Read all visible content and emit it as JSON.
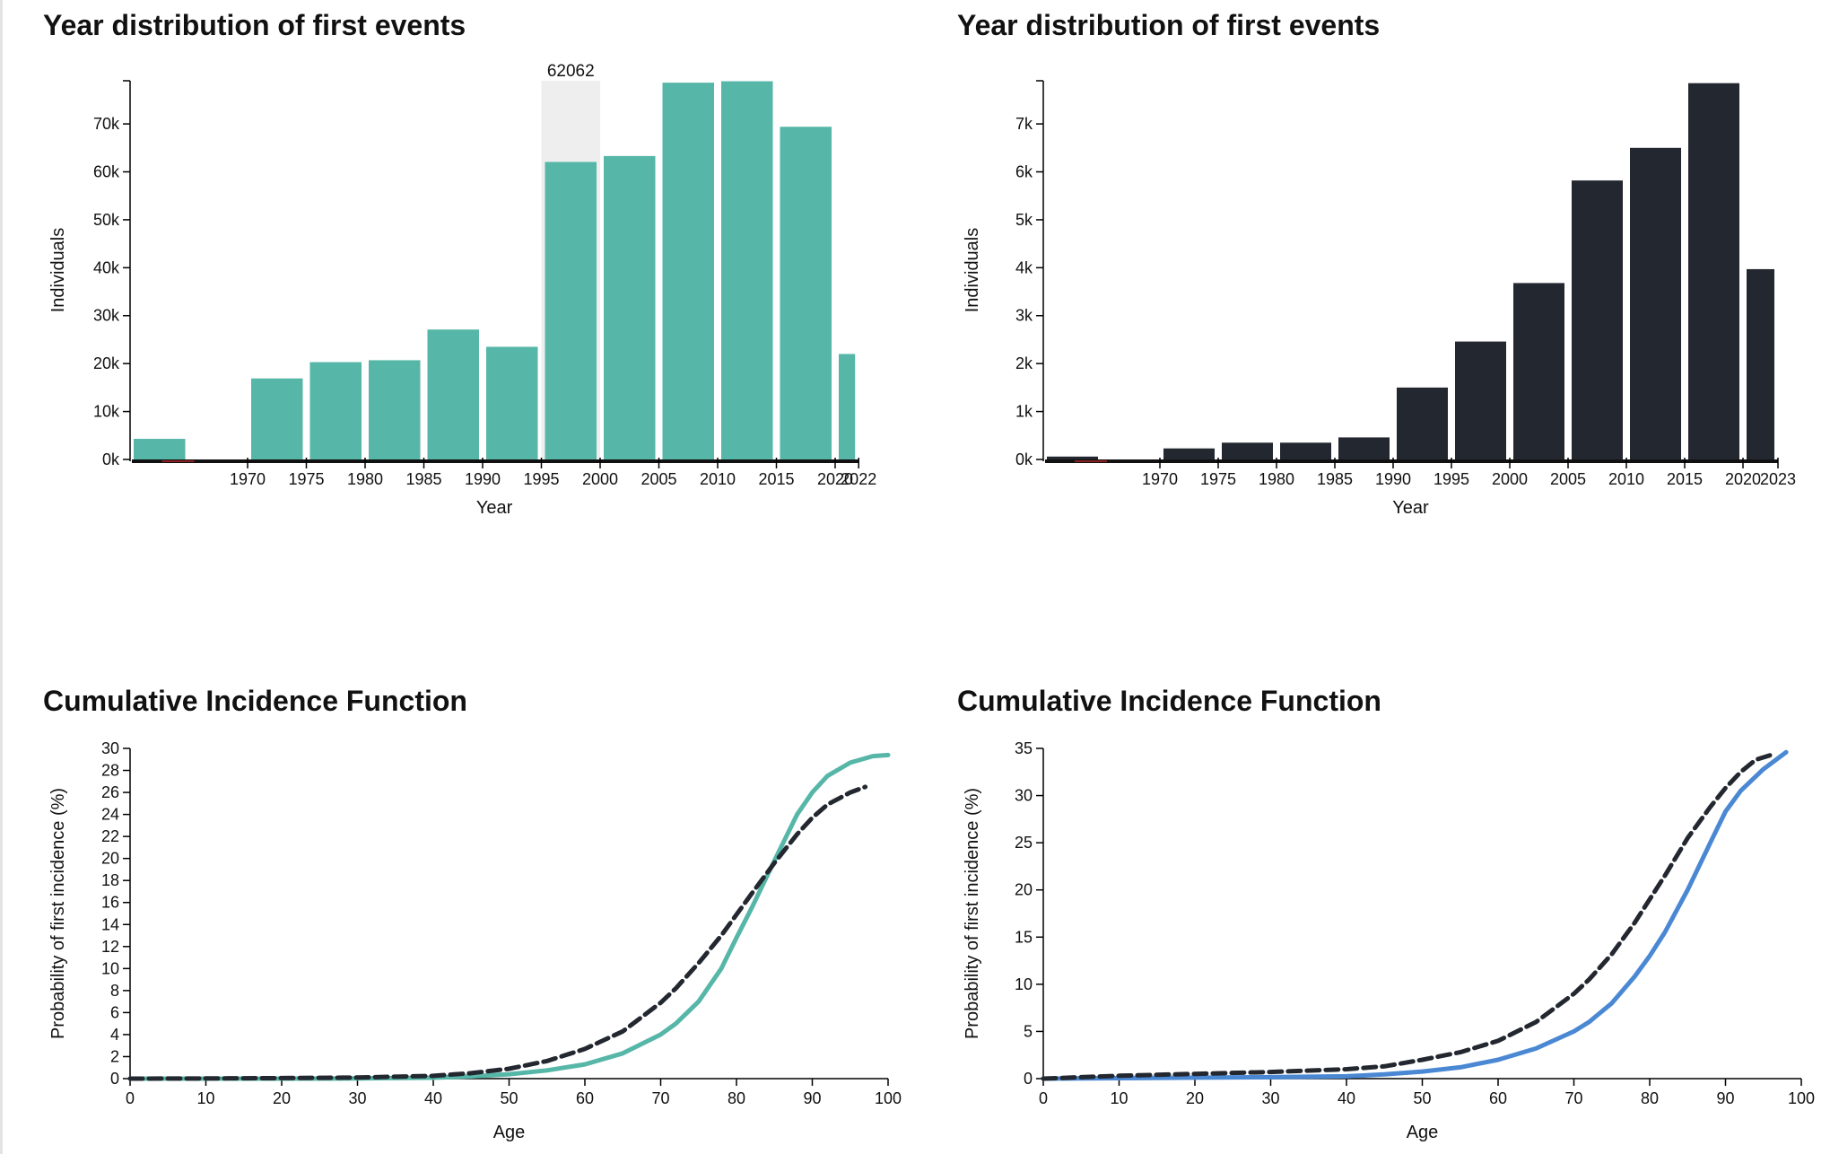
{
  "charts": [
    {
      "title": "Year distribution of first events",
      "chart_data": {
        "type": "bar",
        "title": "Year distribution of first events",
        "xlabel": "Year",
        "ylabel": "Individuals",
        "ylim": [
          0,
          79000
        ],
        "yticks": [
          "0k",
          "10k",
          "20k",
          "30k",
          "40k",
          "50k",
          "60k",
          "70k"
        ],
        "xticks": [
          "1970",
          "1975",
          "1980",
          "1985",
          "1990",
          "1995",
          "2000",
          "2005",
          "2010",
          "2015",
          "2020",
          "2022"
        ],
        "bins": [
          {
            "start": 1960,
            "end": 1965,
            "value": 4300
          },
          {
            "start": 1965,
            "end": 1970,
            "value": 0
          },
          {
            "start": 1970,
            "end": 1975,
            "value": 16900
          },
          {
            "start": 1975,
            "end": 1980,
            "value": 20300
          },
          {
            "start": 1980,
            "end": 1985,
            "value": 20700
          },
          {
            "start": 1985,
            "end": 1990,
            "value": 27100
          },
          {
            "start": 1990,
            "end": 1995,
            "value": 23500
          },
          {
            "start": 1995,
            "end": 2000,
            "value": 62062
          },
          {
            "start": 2000,
            "end": 2005,
            "value": 63300
          },
          {
            "start": 2005,
            "end": 2010,
            "value": 78600
          },
          {
            "start": 2010,
            "end": 2015,
            "value": 78900
          },
          {
            "start": 2015,
            "end": 2020,
            "value": 69400
          },
          {
            "start": 2020,
            "end": 2022,
            "value": 22000
          }
        ],
        "highlight": {
          "index": 7,
          "label": "62062"
        },
        "bar_color": "#56b6a7",
        "highlight_color": "#eeeeee"
      }
    },
    {
      "title": "Year distribution of first events",
      "chart_data": {
        "type": "bar",
        "title": "Year distribution of first events",
        "xlabel": "Year",
        "ylabel": "Individuals",
        "ylim": [
          0,
          7900
        ],
        "yticks": [
          "0k",
          "1k",
          "2k",
          "3k",
          "4k",
          "5k",
          "6k",
          "7k"
        ],
        "xticks": [
          "1970",
          "1975",
          "1980",
          "1985",
          "1990",
          "1995",
          "2000",
          "2005",
          "2010",
          "2015",
          "2020",
          "2023"
        ],
        "bins": [
          {
            "start": 1960,
            "end": 1965,
            "value": 60
          },
          {
            "start": 1965,
            "end": 1970,
            "value": 0
          },
          {
            "start": 1970,
            "end": 1975,
            "value": 230
          },
          {
            "start": 1975,
            "end": 1980,
            "value": 350
          },
          {
            "start": 1980,
            "end": 1985,
            "value": 350
          },
          {
            "start": 1985,
            "end": 1990,
            "value": 460
          },
          {
            "start": 1990,
            "end": 1995,
            "value": 1500
          },
          {
            "start": 1995,
            "end": 2000,
            "value": 2460
          },
          {
            "start": 2000,
            "end": 2005,
            "value": 3680
          },
          {
            "start": 2005,
            "end": 2010,
            "value": 5820
          },
          {
            "start": 2010,
            "end": 2015,
            "value": 6500
          },
          {
            "start": 2015,
            "end": 2020,
            "value": 7850
          },
          {
            "start": 2020,
            "end": 2023,
            "value": 3970
          }
        ],
        "bar_color": "#23272f"
      }
    },
    {
      "title": "Cumulative Incidence Function",
      "chart_data": {
        "type": "line",
        "title": "Cumulative Incidence Function",
        "xlabel": "Age",
        "ylabel": "Probability of first incidence (%)",
        "xlim": [
          0,
          100
        ],
        "ylim": [
          0,
          30
        ],
        "xticks": [
          "0",
          "10",
          "20",
          "30",
          "40",
          "50",
          "60",
          "70",
          "80",
          "90",
          "100"
        ],
        "yticks": [
          "0",
          "2",
          "4",
          "6",
          "8",
          "10",
          "12",
          "14",
          "16",
          "18",
          "20",
          "22",
          "24",
          "26",
          "28",
          "30"
        ],
        "series": [
          {
            "color": "#56b6a7",
            "dashed": false,
            "x": [
              0,
              10,
              20,
              30,
              40,
              45,
              50,
              55,
              60,
              65,
              70,
              72,
              75,
              78,
              80,
              82,
              85,
              88,
              90,
              92,
              95,
              98,
              100
            ],
            "y": [
              0,
              0,
              0,
              0.02,
              0.08,
              0.2,
              0.4,
              0.75,
              1.3,
              2.3,
              4.0,
              5.0,
              7.0,
              10.0,
              12.8,
              15.5,
              19.8,
              24.0,
              26.0,
              27.5,
              28.7,
              29.3,
              29.4
            ]
          },
          {
            "color": "#23272f",
            "dashed": true,
            "x": [
              0,
              10,
              20,
              30,
              40,
              45,
              50,
              55,
              60,
              65,
              70,
              72,
              75,
              78,
              80,
              82,
              85,
              88,
              90,
              92,
              95,
              97
            ],
            "y": [
              0,
              0.02,
              0.05,
              0.1,
              0.25,
              0.5,
              0.9,
              1.6,
              2.7,
              4.3,
              6.9,
              8.2,
              10.5,
              13.0,
              14.9,
              16.8,
              19.6,
              22.2,
              23.7,
              24.9,
              26.0,
              26.5
            ]
          }
        ]
      }
    },
    {
      "title": "Cumulative Incidence Function",
      "chart_data": {
        "type": "line",
        "title": "Cumulative Incidence Function",
        "xlabel": "Age",
        "ylabel": "Probability of first incidence (%)",
        "xlim": [
          0,
          100
        ],
        "ylim": [
          0,
          35
        ],
        "xticks": [
          "0",
          "10",
          "20",
          "30",
          "40",
          "50",
          "60",
          "70",
          "80",
          "90",
          "100"
        ],
        "yticks": [
          "0",
          "5",
          "10",
          "15",
          "20",
          "25",
          "30",
          "35"
        ],
        "series": [
          {
            "color": "#4a88d4",
            "dashed": false,
            "x": [
              0,
              10,
              20,
              30,
              40,
              45,
              50,
              55,
              60,
              65,
              70,
              72,
              75,
              78,
              80,
              82,
              85,
              88,
              90,
              92,
              95,
              98
            ],
            "y": [
              0,
              0.05,
              0.1,
              0.15,
              0.25,
              0.45,
              0.75,
              1.2,
              2.0,
              3.2,
              5.0,
              6.0,
              8.0,
              10.8,
              13.0,
              15.5,
              20.0,
              25.0,
              28.3,
              30.5,
              32.8,
              34.6
            ]
          },
          {
            "color": "#23272f",
            "dashed": true,
            "x": [
              0,
              10,
              20,
              30,
              40,
              45,
              50,
              55,
              60,
              65,
              70,
              72,
              75,
              78,
              80,
              82,
              85,
              88,
              90,
              92,
              94,
              96
            ],
            "y": [
              0,
              0.3,
              0.5,
              0.7,
              1.0,
              1.3,
              2.0,
              2.8,
              4.0,
              6.0,
              9.0,
              10.5,
              13.2,
              16.5,
              19.0,
              21.5,
              25.5,
              28.8,
              30.8,
              32.5,
              33.8,
              34.3
            ]
          }
        ]
      }
    }
  ]
}
